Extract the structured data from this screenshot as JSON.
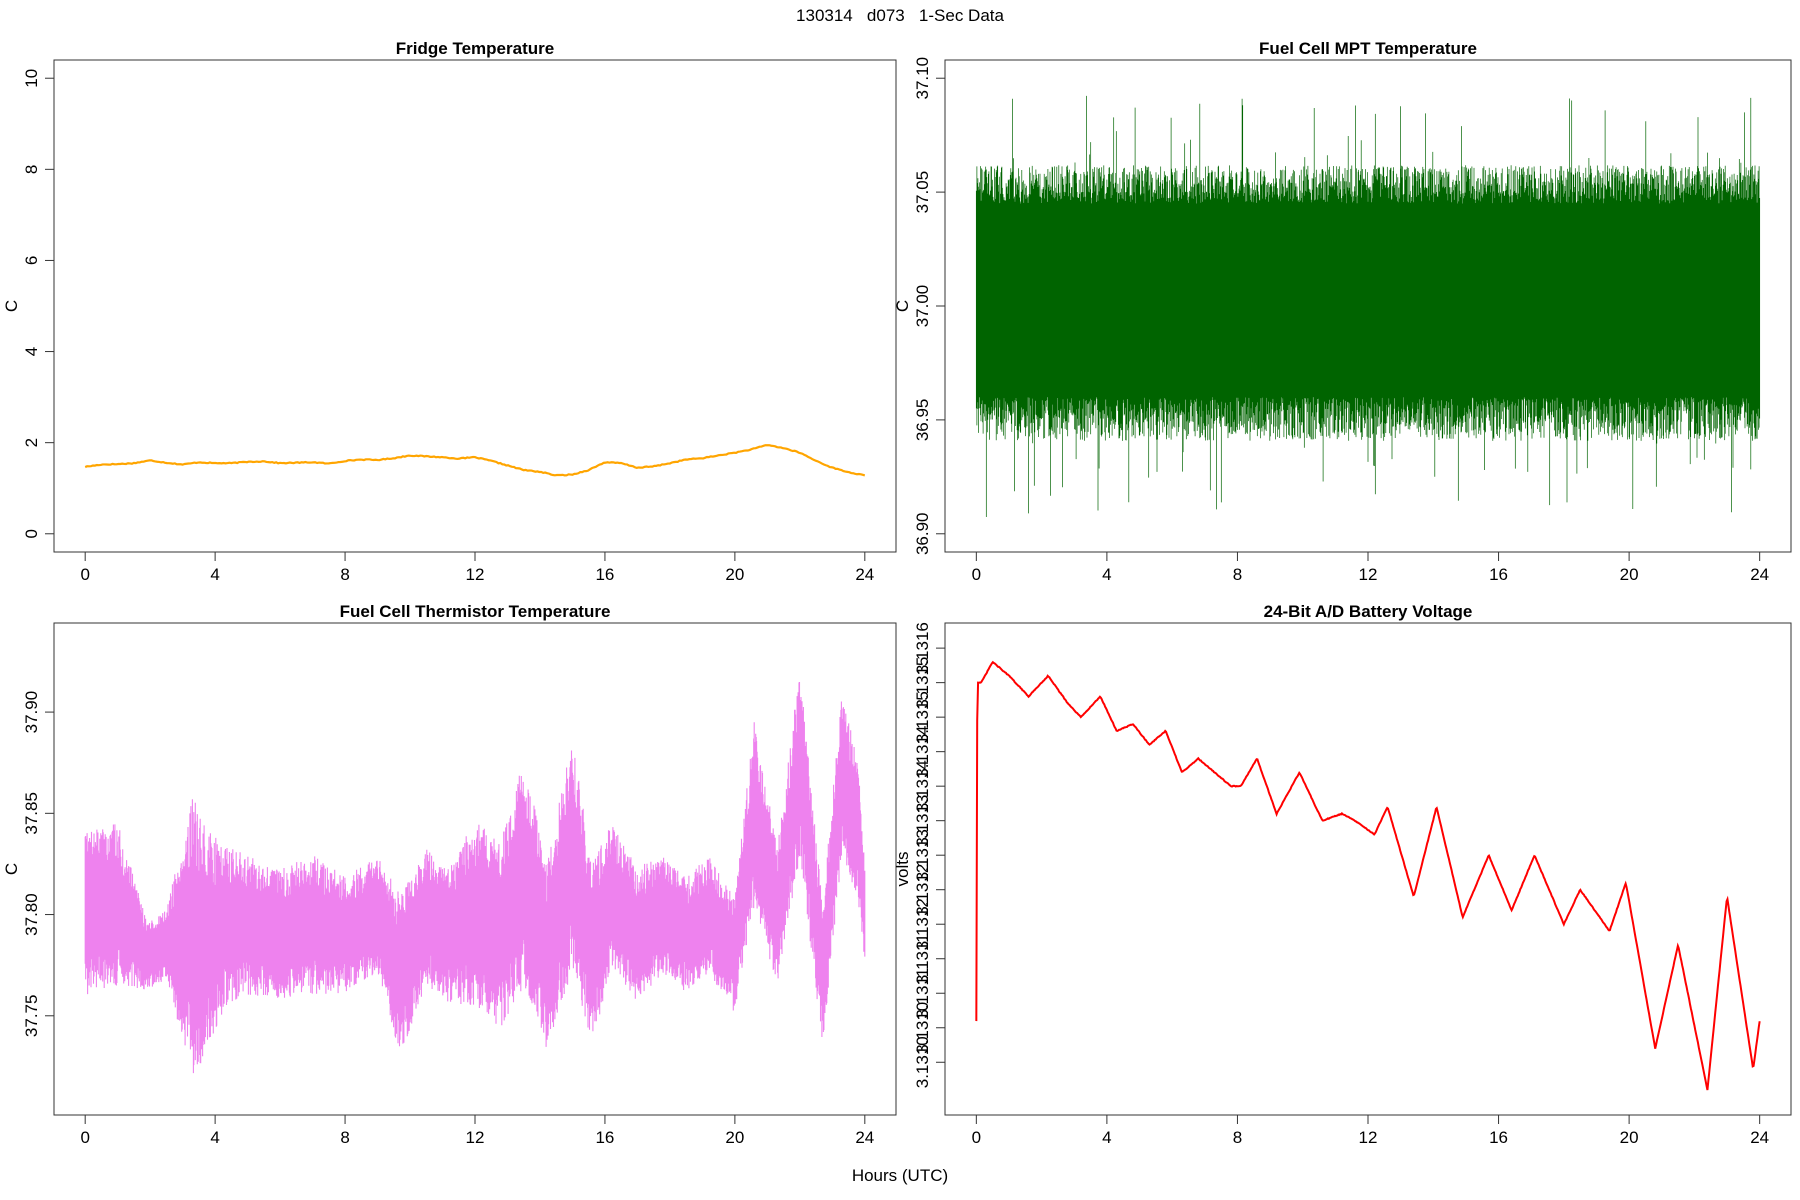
{
  "figure": {
    "title": "130314   d073   1-Sec Data",
    "xlabel": "Hours (UTC)"
  },
  "chart_data": [
    {
      "type": "line",
      "title": "Fridge Temperature",
      "xlabel": "",
      "ylabel": "C",
      "color": "#FFA500",
      "xlim": [
        0,
        24
      ],
      "ylim": [
        0,
        10
      ],
      "xticks": [
        0,
        4,
        8,
        12,
        16,
        20,
        24
      ],
      "yticks": [
        0,
        2,
        4,
        6,
        8,
        10
      ],
      "ytick_labels": [
        "0",
        "2",
        "4",
        "6",
        "8",
        "10"
      ],
      "series": [
        {
          "name": "Fridge Temperature",
          "x": [
            0,
            0.5,
            1,
            1.5,
            2,
            2.5,
            3,
            3.5,
            4,
            4.5,
            5,
            5.5,
            6,
            6.5,
            7,
            7.5,
            8,
            8.5,
            9,
            9.5,
            10,
            10.5,
            11,
            11.5,
            12,
            12.5,
            13,
            13.5,
            14,
            14.5,
            15,
            15.5,
            16,
            16.5,
            17,
            17.5,
            18,
            18.5,
            19,
            19.5,
            20,
            20.5,
            21,
            21.5,
            22,
            22.5,
            23,
            23.5,
            24
          ],
          "values": [
            1.47,
            1.52,
            1.53,
            1.55,
            1.61,
            1.56,
            1.52,
            1.57,
            1.55,
            1.55,
            1.58,
            1.59,
            1.55,
            1.56,
            1.57,
            1.54,
            1.6,
            1.63,
            1.62,
            1.66,
            1.72,
            1.7,
            1.68,
            1.65,
            1.68,
            1.6,
            1.5,
            1.4,
            1.36,
            1.28,
            1.3,
            1.4,
            1.57,
            1.55,
            1.45,
            1.48,
            1.55,
            1.63,
            1.66,
            1.72,
            1.78,
            1.85,
            1.95,
            1.88,
            1.78,
            1.6,
            1.45,
            1.35,
            1.28
          ]
        }
      ]
    },
    {
      "type": "line",
      "title": "Fuel Cell MPT Temperature",
      "xlabel": "",
      "ylabel": "C",
      "color": "#006400",
      "xlim": [
        0,
        24
      ],
      "ylim": [
        36.9,
        37.1
      ],
      "xticks": [
        0,
        4,
        8,
        12,
        16,
        20,
        24
      ],
      "yticks": [
        36.9,
        36.95,
        37.0,
        37.05,
        37.1
      ],
      "ytick_labels": [
        "36.90",
        "36.95",
        "37.00",
        "37.05",
        "37.10"
      ],
      "series": [
        {
          "name": "Fuel Cell MPT Temperature",
          "mean": 37.005,
          "band_low": 36.96,
          "band_high": 37.045,
          "min": 36.905,
          "max": 37.093
        }
      ]
    },
    {
      "type": "line",
      "title": "Fuel Cell Thermistor Temperature",
      "xlabel": "",
      "ylabel": "C",
      "color": "#EE82EE",
      "xlim": [
        0,
        24
      ],
      "ylim": [
        37.71,
        37.935
      ],
      "xticks": [
        0,
        4,
        8,
        12,
        16,
        20,
        24
      ],
      "yticks": [
        37.75,
        37.8,
        37.85,
        37.9
      ],
      "ytick_labels": [
        "37.75",
        "37.80",
        "37.85",
        "37.90"
      ],
      "series": [
        {
          "name": "Fuel Cell Thermistor Temperature",
          "x": [
            0,
            1,
            1.9,
            2.5,
            3.3,
            3.7,
            4.3,
            5,
            6,
            7,
            8,
            9,
            9.7,
            10.5,
            11.2,
            12,
            12.8,
            13.5,
            14.2,
            15,
            15.6,
            16.2,
            17,
            17.8,
            18.5,
            19.2,
            20,
            20.6,
            21.3,
            22,
            22.7,
            23.3,
            23.8,
            24
          ],
          "center": [
            37.8,
            37.805,
            37.78,
            37.785,
            37.79,
            37.785,
            37.795,
            37.795,
            37.79,
            37.795,
            37.79,
            37.8,
            37.77,
            37.8,
            37.79,
            37.8,
            37.79,
            37.82,
            37.78,
            37.83,
            37.78,
            37.81,
            37.79,
            37.8,
            37.79,
            37.8,
            37.78,
            37.85,
            37.8,
            37.875,
            37.77,
            37.87,
            37.84,
            37.8
          ],
          "spread": [
            0.035,
            0.035,
            0.015,
            0.015,
            0.06,
            0.05,
            0.035,
            0.03,
            0.028,
            0.03,
            0.025,
            0.025,
            0.035,
            0.03,
            0.03,
            0.04,
            0.04,
            0.05,
            0.04,
            0.05,
            0.04,
            0.03,
            0.03,
            0.025,
            0.025,
            0.025,
            0.025,
            0.04,
            0.03,
            0.04,
            0.03,
            0.035,
            0.03,
            0.02
          ]
        }
      ]
    },
    {
      "type": "line",
      "title": "24-Bit A/D Battery Voltage",
      "xlabel": "",
      "ylabel": "volts",
      "color": "#FF0000",
      "xlim": [
        0,
        24
      ],
      "ylim": [
        3.13095,
        3.13161
      ],
      "xticks": [
        0,
        4,
        8,
        12,
        16,
        20,
        24
      ],
      "yticks": [
        3.131,
        3.13105,
        3.1311,
        3.13115,
        3.1312,
        3.13125,
        3.1313,
        3.13135,
        3.1314,
        3.13145,
        3.1315,
        3.13155,
        3.1316
      ],
      "ytick_labels": [
        "3.1310",
        "3.1310",
        "3.1311",
        "3.1311",
        "3.1312",
        "3.1312",
        "3.1313",
        "3.1313",
        "3.1314",
        "3.1314",
        "3.1315",
        "3.1315",
        "3.1316"
      ],
      "series": [
        {
          "name": "24-Bit A/D Battery Voltage",
          "x": [
            0,
            0.03,
            0.15,
            0.5,
            1,
            1.6,
            2.2,
            2.8,
            3.2,
            3.8,
            4.3,
            4.8,
            5.3,
            5.8,
            6.3,
            6.8,
            7.3,
            7.8,
            8.1,
            8.6,
            9.2,
            9.9,
            10.6,
            11.2,
            11.6,
            12.2,
            12.6,
            13.4,
            14.1,
            14.9,
            15.7,
            16.4,
            17.1,
            18,
            18.5,
            19.4,
            19.9,
            20.8,
            21.5,
            22.4,
            23,
            23.8,
            24
          ],
          "values": [
            3.13106,
            3.13155,
            3.13155,
            3.13158,
            3.13156,
            3.13153,
            3.13156,
            3.13152,
            3.1315,
            3.13153,
            3.13148,
            3.13149,
            3.13146,
            3.13148,
            3.13142,
            3.13144,
            3.13142,
            3.1314,
            3.1314,
            3.13144,
            3.13136,
            3.13142,
            3.13135,
            3.13136,
            3.13135,
            3.13133,
            3.13137,
            3.13124,
            3.13137,
            3.13121,
            3.1313,
            3.13122,
            3.1313,
            3.1312,
            3.13125,
            3.13119,
            3.13126,
            3.13102,
            3.13117,
            3.13096,
            3.13124,
            3.13099,
            3.13106
          ]
        }
      ]
    }
  ]
}
